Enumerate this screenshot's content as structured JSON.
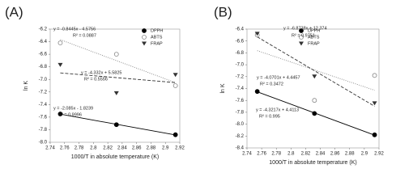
{
  "chart_data": [
    {
      "type": "scatter",
      "panel_label": "(A)",
      "x_label": "1000/T in absolute temperature (K)",
      "y_label": "ln K",
      "x": [
        2.754,
        2.832,
        2.914
      ],
      "xlim": [
        2.74,
        2.92
      ],
      "xticks": [
        2.74,
        2.76,
        2.78,
        2.8,
        2.82,
        2.84,
        2.86,
        2.88,
        2.9,
        2.92
      ],
      "ylim": [
        -8,
        -6.2
      ],
      "yticks": [
        -6.2,
        -6.4,
        -6.6,
        -6.8,
        {
          "value": -7,
          "label": "-7.0"
        },
        -7.2,
        -7.4,
        -7.6,
        -7.8,
        {
          "value": -8,
          "label": "-8.0"
        }
      ],
      "series": [
        {
          "name": "DPPH",
          "color": "#000000",
          "marker": "circle-filled",
          "line_style": "solid",
          "values": [
            -7.55,
            -7.72,
            -7.88
          ]
        },
        {
          "name": "ABTS",
          "color": "#888888",
          "marker": "circle-open",
          "line_style": "dotted",
          "values": [
            -6.42,
            -6.6,
            -7.1
          ]
        },
        {
          "name": "FRAP",
          "color": "#333333",
          "marker": "triangle",
          "line_style": "dashed",
          "values": [
            -6.77,
            -7.22,
            -6.93
          ]
        }
      ],
      "annotations": [
        "y = -0.8445x - 4.5756",
        "R² = 0.0887",
        "y = -4.332x + 5.5825",
        "R² = 0.5556",
        "y = -2.085x - 1.8239",
        "R² = 0.9996"
      ]
    },
    {
      "type": "scatter",
      "panel_label": "(B)",
      "x_label": "1000/T in absolute temperature (K)",
      "y_label": "ln K",
      "x": [
        2.754,
        2.832,
        2.914
      ],
      "xlim": [
        2.74,
        2.92
      ],
      "xticks": [
        2.74,
        2.76,
        2.78,
        2.8,
        2.82,
        2.84,
        2.86,
        2.88,
        2.9,
        2.92
      ],
      "ylim": [
        -8.4,
        -6.4
      ],
      "yticks": [
        -6.4,
        -6.6,
        -6.8,
        {
          "value": -7,
          "label": "-7.0"
        },
        -7.2,
        -7.4,
        -7.6,
        -7.8,
        {
          "value": -8,
          "label": "-8.0"
        },
        -8.2,
        -8.4
      ],
      "series": [
        {
          "name": "DPPH",
          "color": "#000000",
          "marker": "circle-filled",
          "line_style": "solid",
          "values": [
            -7.45,
            -7.82,
            -8.18
          ]
        },
        {
          "name": "ABTS",
          "color": "#888888",
          "marker": "circle-open",
          "line_style": "dotted",
          "values": [
            -6.5,
            -7.6,
            -7.18
          ]
        },
        {
          "name": "FRAP",
          "color": "#333333",
          "marker": "triangle",
          "line_style": "dashed",
          "values": [
            -6.48,
            -7.2,
            -7.65
          ]
        }
      ],
      "annotations": [
        "y = -6.8738x + 12.374",
        "R² = 0.9751",
        "y = -4.0701x + 4.4457",
        "R² = 0.3472",
        "y = -4.3217x + 4.4113",
        "R² = 0.995"
      ]
    }
  ]
}
